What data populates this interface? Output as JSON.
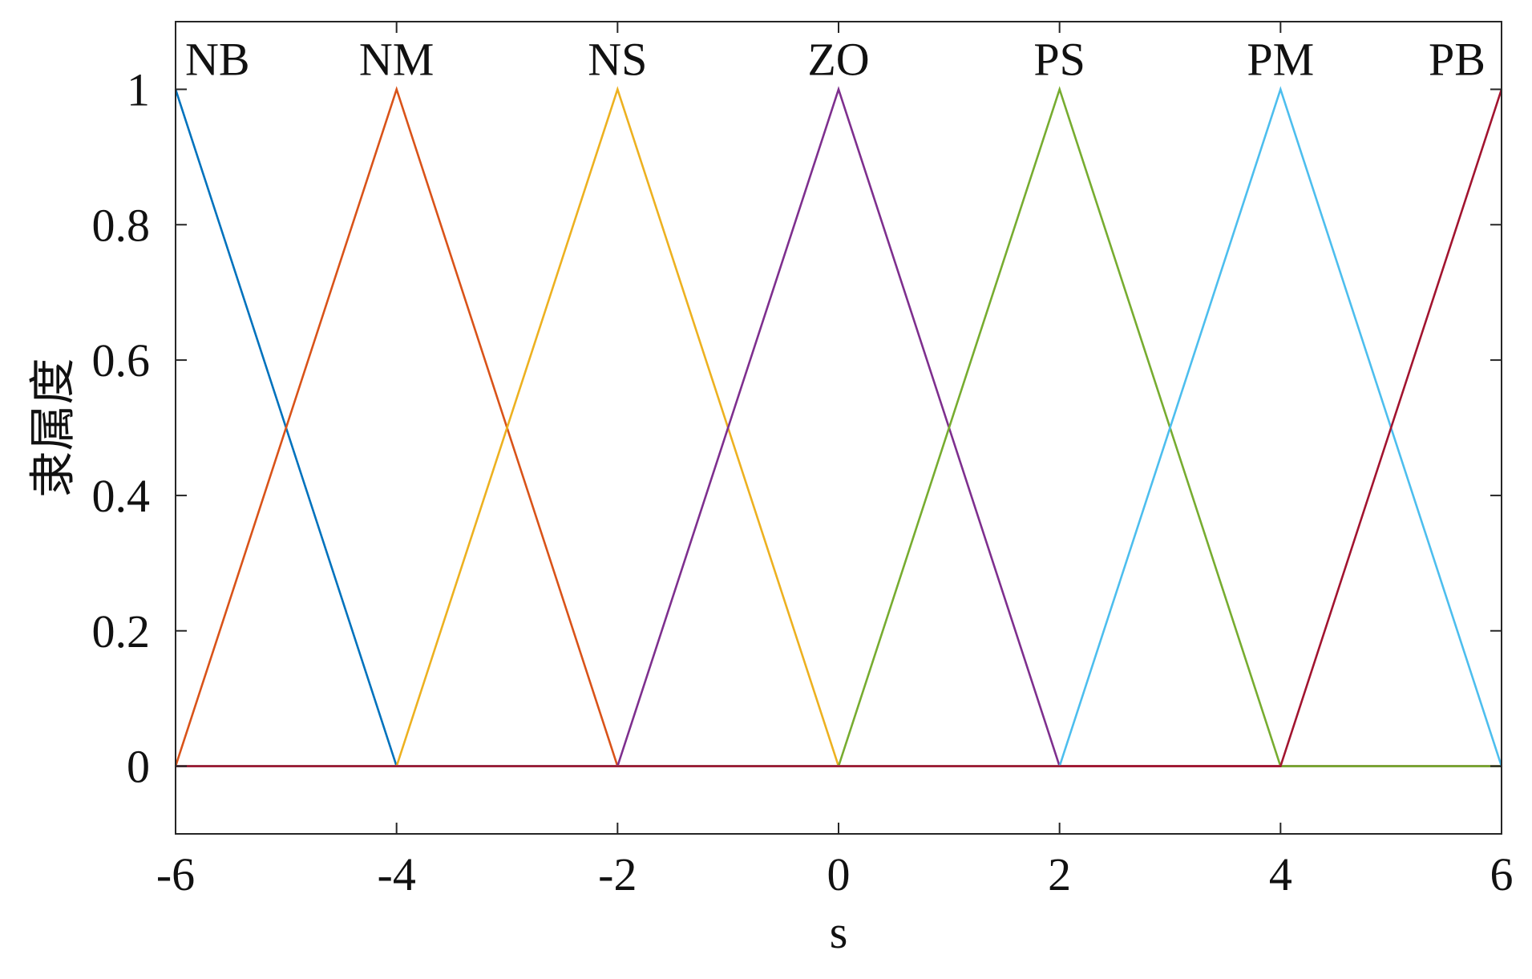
{
  "chart_data": {
    "type": "line",
    "xlabel": "s",
    "ylabel": "隶属度",
    "xlim": [
      -6,
      6
    ],
    "ylim": [
      -0.1,
      1.1
    ],
    "xticks": [
      "-6",
      "-4",
      "-2",
      "0",
      "2",
      "4",
      "6"
    ],
    "yticks": [
      "0",
      "0.2",
      "0.4",
      "0.6",
      "0.8",
      "1"
    ],
    "x": [
      -6,
      -4,
      -2,
      0,
      2,
      4,
      6
    ],
    "series": [
      {
        "name": "NB",
        "color": "#0072BD",
        "values": [
          1,
          0,
          0,
          0,
          0,
          0,
          0
        ]
      },
      {
        "name": "NM",
        "color": "#D95319",
        "values": [
          0,
          1,
          0,
          0,
          0,
          0,
          0
        ]
      },
      {
        "name": "NS",
        "color": "#EDB120",
        "values": [
          0,
          0,
          1,
          0,
          0,
          0,
          0
        ]
      },
      {
        "name": "ZO",
        "color": "#7E2F8E",
        "values": [
          0,
          0,
          0,
          1,
          0,
          0,
          0
        ]
      },
      {
        "name": "PS",
        "color": "#77AC30",
        "values": [
          0,
          0,
          0,
          0,
          1,
          0,
          0
        ]
      },
      {
        "name": "PM",
        "color": "#4DBEEE",
        "values": [
          0,
          0,
          0,
          0,
          0,
          1,
          0
        ]
      },
      {
        "name": "PB",
        "color": "#A2142F",
        "values": [
          0,
          0,
          0,
          0,
          0,
          0,
          1
        ]
      }
    ],
    "grid": false,
    "legend": "none"
  }
}
